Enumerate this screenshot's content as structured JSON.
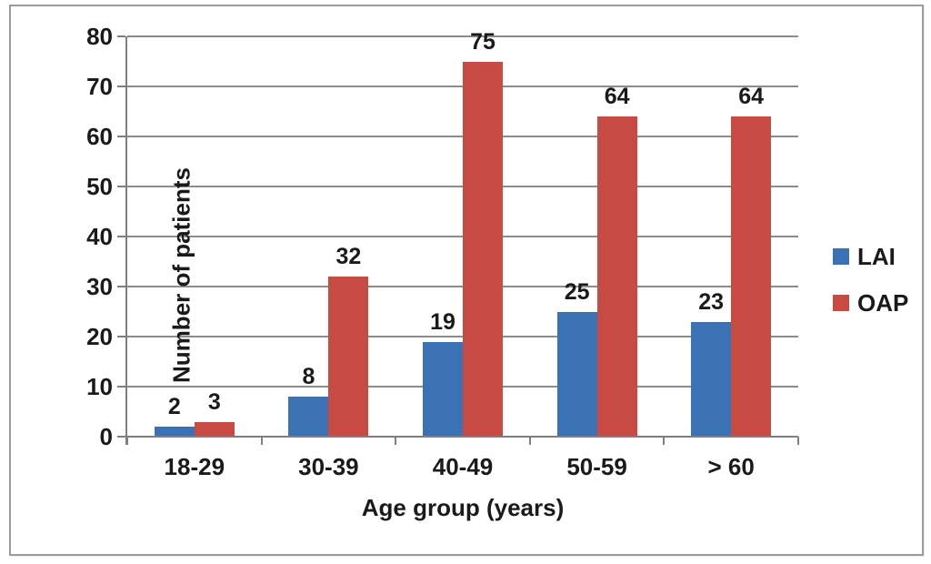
{
  "chart_data": {
    "type": "bar",
    "title": "",
    "categories": [
      "18-29",
      "30-39",
      "40-49",
      "50-59",
      "> 60"
    ],
    "series": [
      {
        "name": "LAI",
        "color": "#3a72b5",
        "values": [
          2,
          8,
          19,
          25,
          23
        ]
      },
      {
        "name": "OAP",
        "color": "#c74b42",
        "values": [
          3,
          32,
          75,
          64,
          64
        ]
      }
    ],
    "xlabel": "Age group (years)",
    "ylabel": "Number of patients",
    "ylim": [
      0,
      80
    ],
    "yticks": [
      0,
      10,
      20,
      30,
      40,
      50,
      60,
      70,
      80
    ],
    "grid": "horizontal",
    "legend_position": "right",
    "data_labels": true,
    "colors": {
      "gridline": "#8c8c8c",
      "axis": "#7f7f7f",
      "text": "#1a1a1a",
      "figure_border": "#9c9c9c",
      "background": "#ffffff"
    }
  }
}
